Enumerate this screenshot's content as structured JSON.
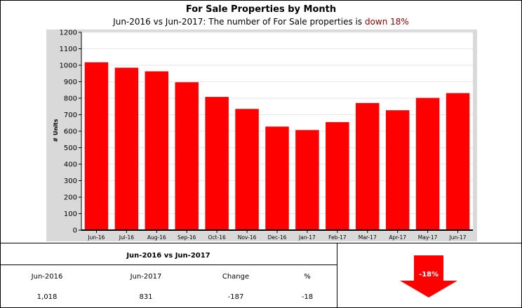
{
  "header": {
    "title": "For Sale Properties by Month",
    "subtitle_prefix": "Jun-2016 vs Jun-2017: The number of For Sale properties is",
    "subtitle_trend": "down 18%"
  },
  "colors": {
    "bar": "#ff0000",
    "plot_background": "#ffffff",
    "panel_background": "#d9d9d9",
    "trend_text": "#8b0000",
    "arrow": "#ff0000"
  },
  "chart_data": {
    "type": "bar",
    "title": "For Sale Properties by Month",
    "subtitle": "Jun-2016 vs Jun-2017: The number of For Sale properties is down 18%",
    "xlabel": "",
    "ylabel": "# Units",
    "ylim": [
      0,
      1200
    ],
    "yticks": [
      0,
      100,
      200,
      300,
      400,
      500,
      600,
      700,
      800,
      900,
      1000,
      1100,
      1200
    ],
    "grid": true,
    "legend": "none",
    "categories": [
      "Jun-16",
      "Jul-16",
      "Aug-16",
      "Sep-16",
      "Oct-16",
      "Nov-16",
      "Dec-16",
      "Jan-17",
      "Feb-17",
      "Mar-17",
      "Apr-17",
      "May-17",
      "Jun-17"
    ],
    "values": [
      1018,
      985,
      963,
      897,
      808,
      735,
      628,
      607,
      655,
      771,
      727,
      802,
      831
    ]
  },
  "summary": {
    "title": "Jun-2016 vs Jun-2017",
    "headers": [
      "Jun-2016",
      "Jun-2017",
      "Change",
      "%"
    ],
    "values": [
      "1,018",
      "831",
      "-187",
      "-18"
    ],
    "indicator_label": "-18%",
    "indicator_icon": "down-arrow-icon"
  }
}
